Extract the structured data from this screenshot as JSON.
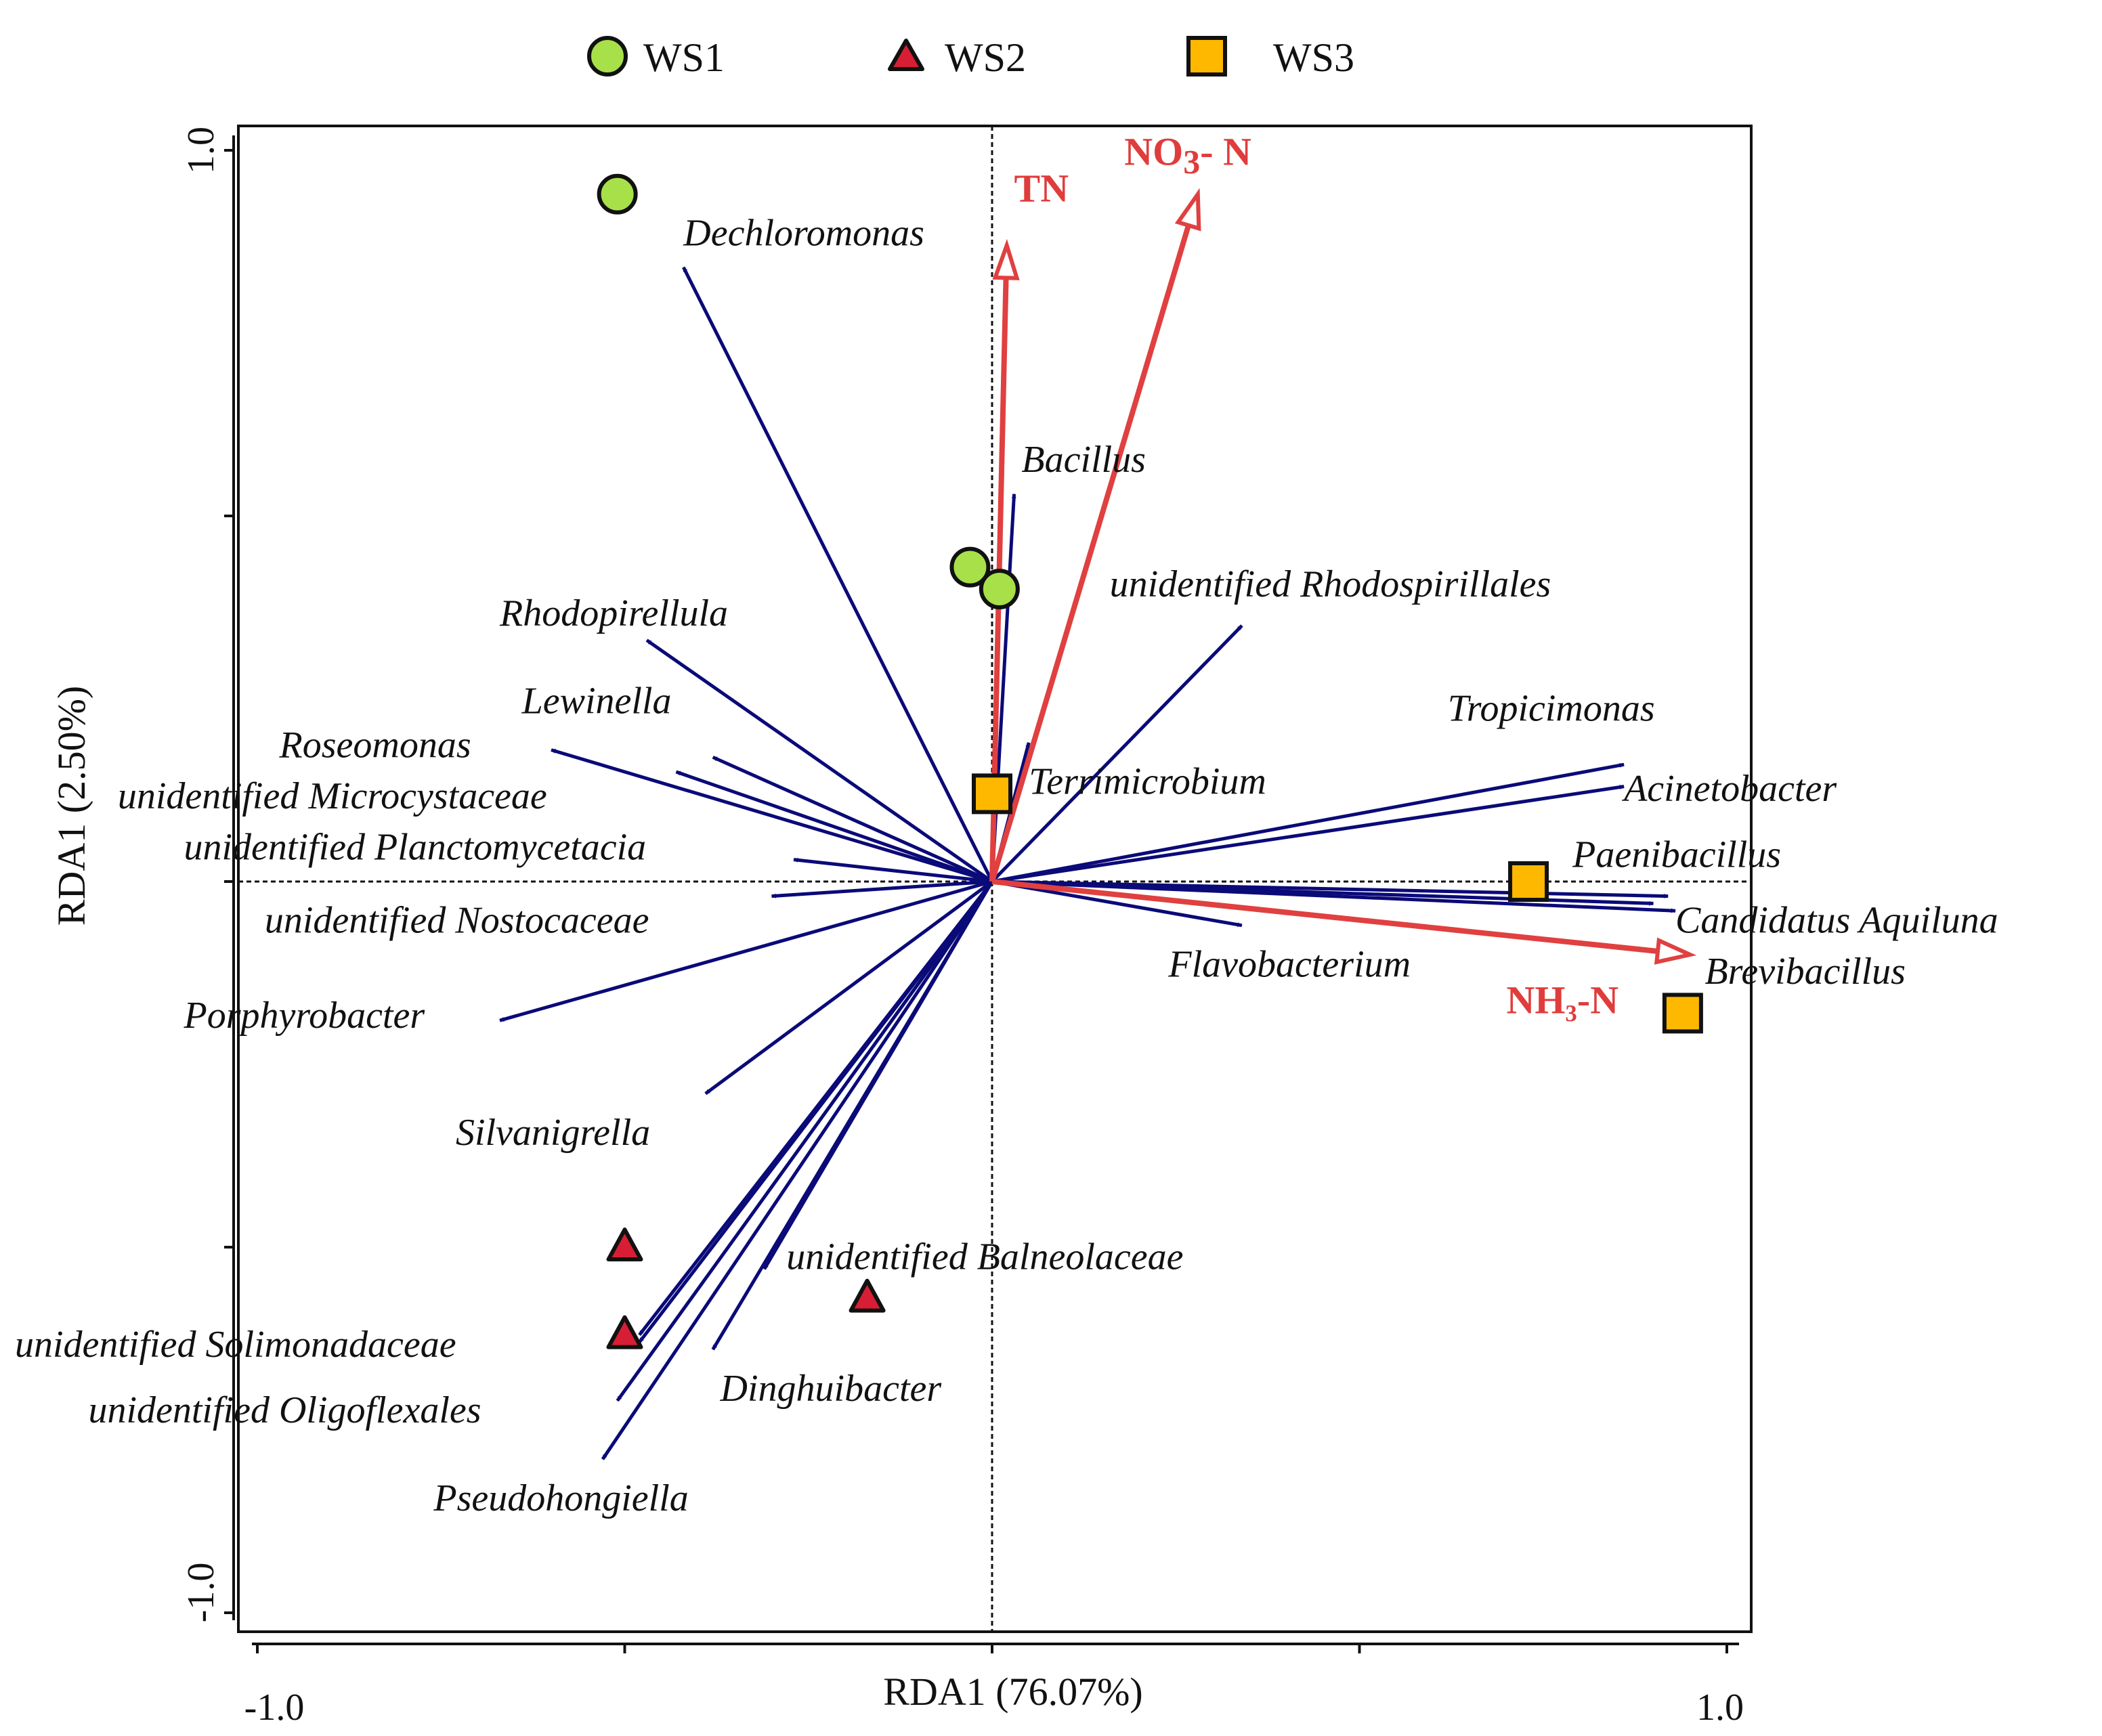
{
  "chart_data": {
    "type": "scatter",
    "subtype": "RDA biplot",
    "xlabel": "RDA1 (76.07%)",
    "ylabel": "RDA1 (2.50%)",
    "xlim": [
      -1.0,
      1.0
    ],
    "ylim": [
      -1.0,
      1.0
    ],
    "x_ticks": [
      -1.0,
      -0.5,
      0.0,
      0.5,
      1.0
    ],
    "y_ticks": [
      -1.0,
      -0.5,
      0.0,
      0.5,
      1.0
    ],
    "x_tick_labels": [
      "-1.0",
      "1.0"
    ],
    "y_tick_labels": [
      "1.0",
      "-1.0"
    ],
    "legend": {
      "position": "top",
      "entries": [
        {
          "name": "WS1",
          "marker": "circle",
          "color": "#a8e04a"
        },
        {
          "name": "WS2",
          "marker": "triangle",
          "color": "#d81e34"
        },
        {
          "name": "WS3",
          "marker": "square",
          "color": "#ffb800"
        }
      ]
    },
    "samples": [
      {
        "group": "WS1",
        "x": -0.51,
        "y": 0.94
      },
      {
        "group": "WS1",
        "x": -0.03,
        "y": 0.43
      },
      {
        "group": "WS1",
        "x": 0.01,
        "y": 0.4
      },
      {
        "group": "WS2",
        "x": -0.5,
        "y": -0.5
      },
      {
        "group": "WS2",
        "x": -0.5,
        "y": -0.62
      },
      {
        "group": "WS2",
        "x": -0.17,
        "y": -0.57
      },
      {
        "group": "WS3",
        "x": 0.0,
        "y": 0.12
      },
      {
        "group": "WS3",
        "x": 0.73,
        "y": 0.0
      },
      {
        "group": "WS3",
        "x": 0.94,
        "y": -0.18
      }
    ],
    "environmental_vectors": [
      {
        "name": "TN",
        "x": 0.02,
        "y": 0.87,
        "label": "TN"
      },
      {
        "name": "NO3-N",
        "x": 0.28,
        "y": 0.94,
        "label": "NO",
        "label_sub": "3",
        "label_suffix": "- N"
      },
      {
        "name": "NH3-N",
        "x": 0.95,
        "y": -0.1,
        "label": "NH₃-N"
      }
    ],
    "species_vectors": [
      {
        "name": "Dechloromonas",
        "x": -0.42,
        "y": 0.84
      },
      {
        "name": "Bacillus",
        "x": 0.03,
        "y": 0.53
      },
      {
        "name": "unidentified Rhodospirillales",
        "x": 0.34,
        "y": 0.35
      },
      {
        "name": "Rhodopirellula",
        "x": -0.47,
        "y": 0.33
      },
      {
        "name": "Lewinella",
        "x": -0.38,
        "y": 0.17
      },
      {
        "name": "Roseomonas",
        "x": -0.6,
        "y": 0.18
      },
      {
        "name": "unidentified Microcystaceae",
        "x": -0.43,
        "y": 0.15
      },
      {
        "name": "unidentified Planctomycetacia",
        "x": -0.27,
        "y": 0.03
      },
      {
        "name": "unidentified Nostocaceae",
        "x": -0.3,
        "y": -0.02
      },
      {
        "name": "Porphyrobacter",
        "x": -0.67,
        "y": -0.19
      },
      {
        "name": "Silvanigrella",
        "x": -0.39,
        "y": -0.29
      },
      {
        "name": "Terrimicrobium",
        "x": 0.05,
        "y": 0.19
      },
      {
        "name": "Tropicimonas",
        "x": 0.86,
        "y": 0.16
      },
      {
        "name": "Acinetobacter",
        "x": 0.86,
        "y": 0.13
      },
      {
        "name": "Paenibacillus",
        "x": 0.92,
        "y": -0.02
      },
      {
        "name": "Candidatus Aquiluna",
        "x": 0.93,
        "y": -0.04
      },
      {
        "name": "Brevibacillus",
        "x": 0.9,
        "y": -0.03
      },
      {
        "name": "Flavobacterium",
        "x": 0.34,
        "y": -0.06
      },
      {
        "name": "unidentified Balneolaceae",
        "x": -0.31,
        "y": -0.53
      },
      {
        "name": "unidentified Solimonadaceae",
        "x": -0.48,
        "y": -0.63
      },
      {
        "name": "unidentified Oligoflexales",
        "x": -0.51,
        "y": -0.71
      },
      {
        "name": "Pseudohongiella",
        "x": -0.53,
        "y": -0.79
      },
      {
        "name": "Dinghuibacter",
        "x": -0.38,
        "y": -0.64
      },
      {
        "name": "unlabeled-1",
        "x": -0.48,
        "y": -0.62
      }
    ],
    "species_labels": [
      {
        "text": "Dechloromonas",
        "x": -0.42,
        "y": 0.87
      },
      {
        "text": "Bacillus",
        "x": 0.04,
        "y": 0.56
      },
      {
        "text": "unidentified Rhodospirillales",
        "x": 0.16,
        "y": 0.39
      },
      {
        "text": "Rhodopirellula",
        "x": -0.67,
        "y": 0.35
      },
      {
        "text": "Lewinella",
        "x": -0.64,
        "y": 0.23
      },
      {
        "text": "Roseomonas",
        "x": -0.97,
        "y": 0.17
      },
      {
        "text": "unidentified Microcystaceae",
        "x": -1.19,
        "y": 0.1
      },
      {
        "text": "unidentified Planctomycetacia",
        "x": -1.1,
        "y": 0.03
      },
      {
        "text": "unidentified Nostocaceae",
        "x": -0.99,
        "y": -0.07
      },
      {
        "text": "Porphyrobacter",
        "x": -1.1,
        "y": -0.2
      },
      {
        "text": "Silvanigrella",
        "x": -0.73,
        "y": -0.36
      },
      {
        "text": "Terrimicrobium",
        "x": 0.05,
        "y": 0.12
      },
      {
        "text": "Tropicimonas",
        "x": 0.62,
        "y": 0.22
      },
      {
        "text": "Acinetobacter",
        "x": 0.86,
        "y": 0.11
      },
      {
        "text": "Paenibacillus",
        "x": 0.79,
        "y": 0.02
      },
      {
        "text": "Candidatus Aquiluna",
        "x": 0.93,
        "y": -0.07
      },
      {
        "text": "Brevibacillus",
        "x": 0.97,
        "y": -0.14
      },
      {
        "text": "Flavobacterium",
        "x": 0.24,
        "y": -0.13
      },
      {
        "text": "unidentified Balneolaceae",
        "x": -0.28,
        "y": -0.53
      },
      {
        "text": "unidentified Solimonadaceae",
        "x": -1.33,
        "y": -0.65
      },
      {
        "text": "unidentified Oligoflexales",
        "x": -1.23,
        "y": -0.74
      },
      {
        "text": "Dinghuibacter",
        "x": -0.37,
        "y": -0.71
      },
      {
        "text": "Pseudohongiella",
        "x": -0.76,
        "y": -0.86
      }
    ],
    "env_label_positions": [
      {
        "name": "TN",
        "x": 0.03,
        "y": 0.93
      },
      {
        "name": "NO3-N",
        "x": 0.18,
        "y": 0.98
      },
      {
        "name": "NH3-N",
        "x": 0.7,
        "y": -0.18
      }
    ],
    "colors": {
      "species_arrow": "#0a0a78",
      "env_arrow": "#e04040",
      "env_label": "#e03c3c",
      "ws1": "#a8e04a",
      "ws2": "#d81e34",
      "ws3": "#ffb800"
    }
  }
}
